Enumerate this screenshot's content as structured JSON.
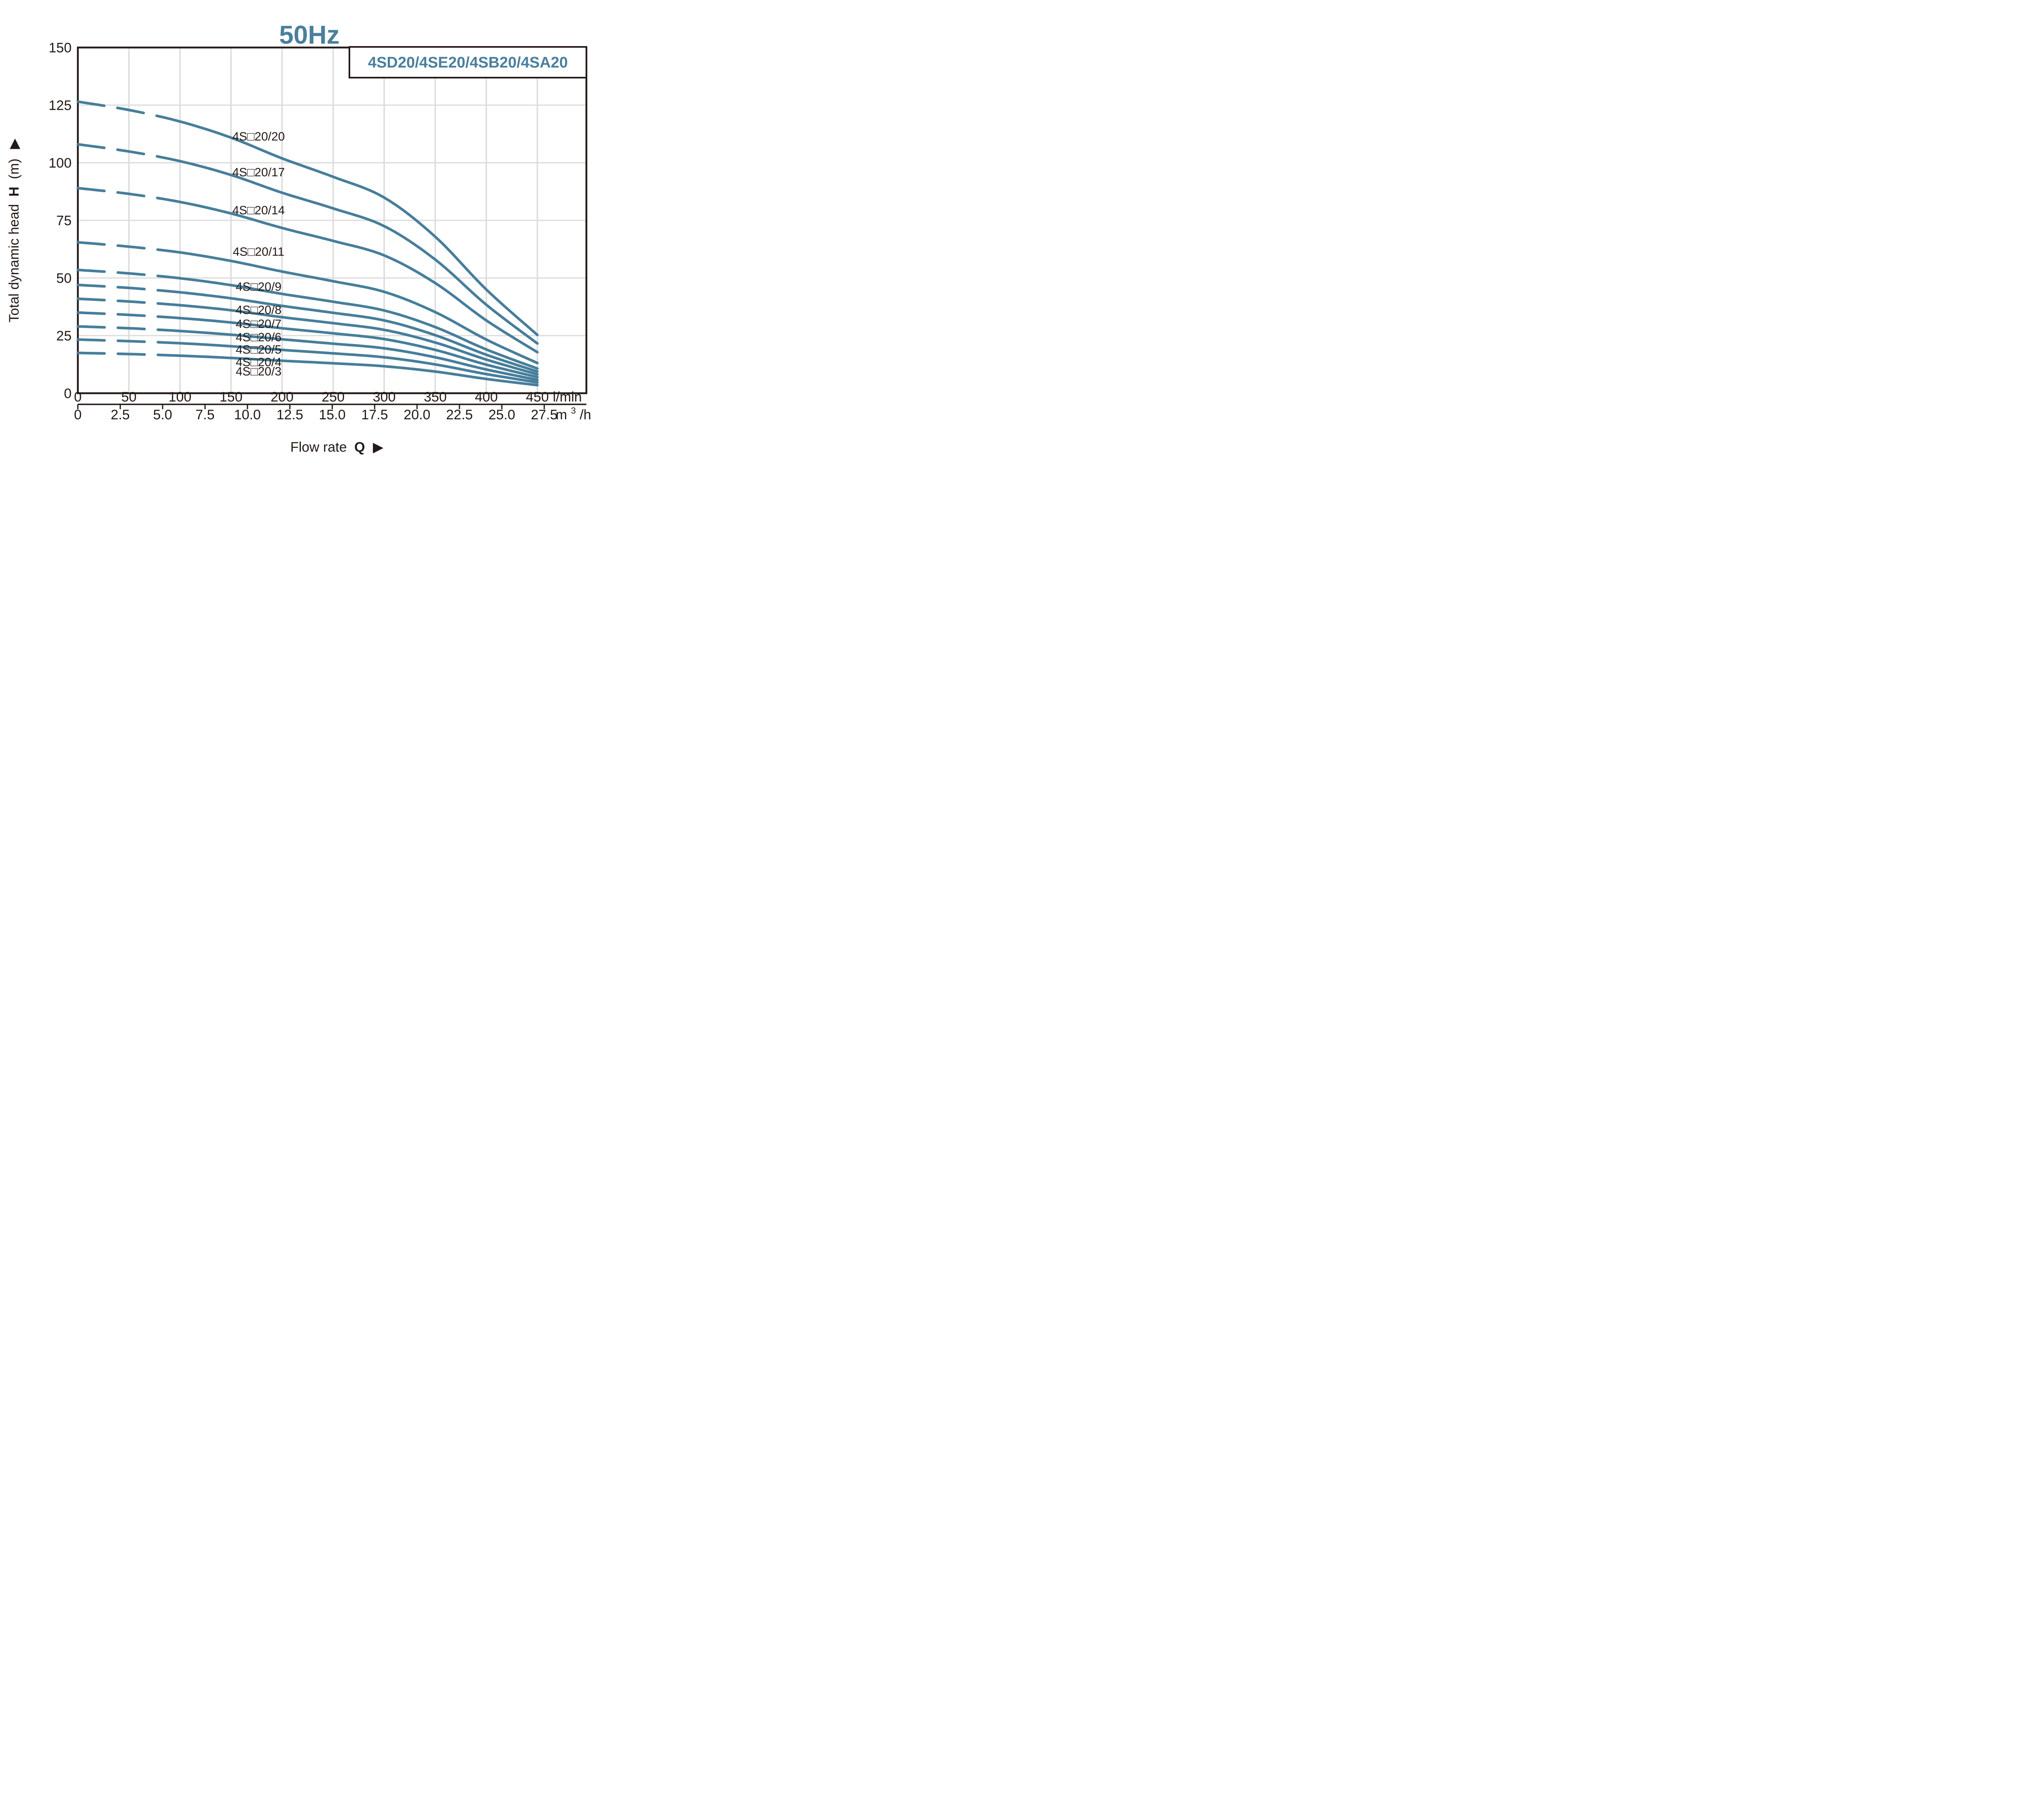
{
  "title": "50Hz",
  "legend": {
    "label": "4SD20/4SE20/4SB20/4SA20"
  },
  "y_axis": {
    "label_prefix": "Total dynamic head",
    "label_bold": "H",
    "label_suffix": "(m)",
    "arrow": "▶",
    "ticks": [
      0,
      25,
      50,
      75,
      100,
      125,
      150
    ]
  },
  "x_axis_lmin": {
    "ticks": [
      0,
      50,
      100,
      150,
      200,
      250,
      300,
      350,
      400,
      450
    ],
    "unit": "l/min"
  },
  "x_axis_m3h": {
    "tick_labels": [
      "0",
      "2.5",
      "5.0",
      "7.5",
      "10.0",
      "12.5",
      "15.0",
      "17.5",
      "20.0",
      "22.5",
      "25.0",
      "27.5"
    ],
    "tick_values": [
      0,
      2.5,
      5,
      7.5,
      10,
      12.5,
      15,
      17.5,
      20,
      22.5,
      25,
      27.5
    ],
    "unit_base": "m",
    "unit_sup": "3",
    "unit_denom": "/h"
  },
  "x_label": {
    "prefix": "Flow rate",
    "bold": "Q",
    "arrow": "▶"
  },
  "colors": {
    "curve": "#467E9B",
    "accent_text": "#4A7F9D",
    "grid": "#DCDCDC",
    "ink": "#231916"
  },
  "chart_data": {
    "type": "line",
    "title": "50Hz",
    "x_unit": "l/min",
    "y_unit": "m",
    "xlabel": "Flow rate Q",
    "ylabel": "Total dynamic head H (m)",
    "xlim_lmin": [
      0,
      450
    ],
    "ylim": [
      0,
      150
    ],
    "grid": true,
    "dashed_until_lmin": 80,
    "x": [
      0,
      50,
      100,
      150,
      200,
      250,
      300,
      350,
      400,
      450
    ],
    "series": [
      {
        "name": "4S□20/20",
        "values": [
          126.5,
          122.9,
          117.9,
          110.9,
          101.9,
          93.9,
          84.9,
          67.9,
          45.0,
          25.3
        ],
        "label_at": {
          "q": 177,
          "h": 111.5
        }
      },
      {
        "name": "4S□20/17",
        "values": [
          108.0,
          104.9,
          100.7,
          94.7,
          87.0,
          80.2,
          72.5,
          58.0,
          38.4,
          21.6
        ],
        "label_at": {
          "q": 177,
          "h": 96.0
        }
      },
      {
        "name": "4S□20/14",
        "values": [
          89.0,
          86.5,
          83.0,
          78.0,
          71.7,
          66.1,
          59.8,
          47.8,
          31.6,
          17.8
        ],
        "label_at": {
          "q": 177,
          "h": 79.5
        }
      },
      {
        "name": "4S□20/11",
        "values": [
          65.5,
          63.6,
          61.1,
          57.4,
          52.8,
          48.6,
          44.0,
          35.2,
          23.3,
          13.1
        ],
        "label_at": {
          "q": 177,
          "h": 61.5
        }
      },
      {
        "name": "4S□20/9",
        "values": [
          53.5,
          52.0,
          49.9,
          46.9,
          43.1,
          39.7,
          35.9,
          28.7,
          19.0,
          10.7
        ],
        "label_at": {
          "q": 177,
          "h": 46.3
        }
      },
      {
        "name": "4S□20/8",
        "values": [
          47.0,
          45.7,
          43.8,
          41.2,
          37.9,
          34.9,
          31.6,
          25.2,
          16.7,
          9.4
        ],
        "label_at": {
          "q": 177,
          "h": 36.2
        }
      },
      {
        "name": "4S□20/7",
        "values": [
          41.0,
          39.8,
          38.2,
          36.0,
          33.0,
          30.4,
          27.5,
          22.0,
          14.6,
          8.2
        ],
        "label_at": {
          "q": 177,
          "h": 30.2
        }
      },
      {
        "name": "4S□20/6",
        "values": [
          35.0,
          34.0,
          32.6,
          30.7,
          28.2,
          26.0,
          23.5,
          18.8,
          12.4,
          7.0
        ],
        "label_at": {
          "q": 177,
          "h": 24.4
        }
      },
      {
        "name": "4S□20/5",
        "values": [
          29.0,
          28.2,
          27.0,
          25.4,
          23.4,
          21.5,
          19.5,
          15.6,
          10.3,
          5.8
        ],
        "label_at": {
          "q": 177,
          "h": 19.0
        }
      },
      {
        "name": "4S□20/4",
        "values": [
          23.3,
          22.6,
          21.7,
          20.4,
          18.8,
          17.3,
          15.6,
          12.5,
          8.3,
          4.7
        ],
        "label_at": {
          "q": 177,
          "h": 13.6
        }
      },
      {
        "name": "4S□20/3",
        "values": [
          17.5,
          17.0,
          16.3,
          15.3,
          14.1,
          13.0,
          11.7,
          9.4,
          6.2,
          3.5
        ],
        "label_at": {
          "q": 177,
          "h": 9.6
        }
      }
    ]
  }
}
